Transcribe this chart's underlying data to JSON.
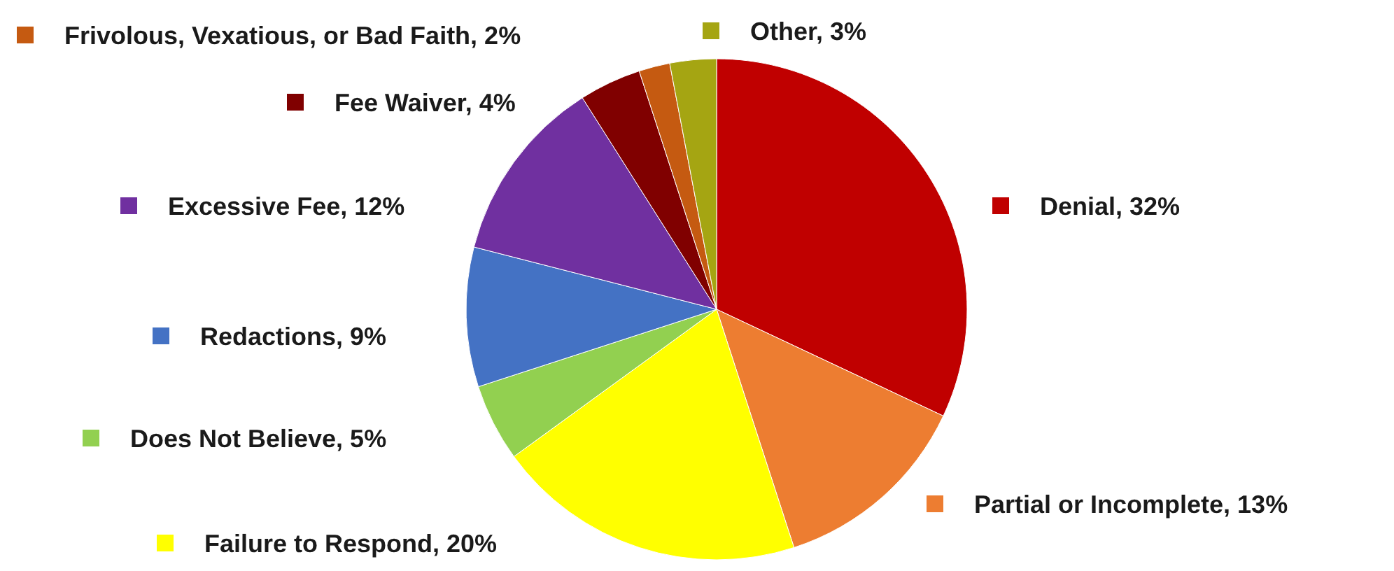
{
  "chart_data": {
    "type": "pie",
    "categories": [
      "Denial",
      "Partial or Incomplete",
      "Failure to Respond",
      "Does Not Believe",
      "Redactions",
      "Excessive Fee",
      "Fee Waiver",
      "Frivolous, Vexatious, or Bad Faith",
      "Other"
    ],
    "values": [
      32,
      13,
      20,
      5,
      9,
      12,
      4,
      2,
      3
    ],
    "value_labels": [
      "32%",
      "13%",
      "20%",
      "5%",
      "9%",
      "12%",
      "4%",
      "2%",
      "3%"
    ],
    "colors": [
      "#c00000",
      "#ed7d31",
      "#ffff00",
      "#92d050",
      "#4472c4",
      "#7030a0",
      "#800000",
      "#c55a11",
      "#a5a512"
    ],
    "legend": "left"
  }
}
